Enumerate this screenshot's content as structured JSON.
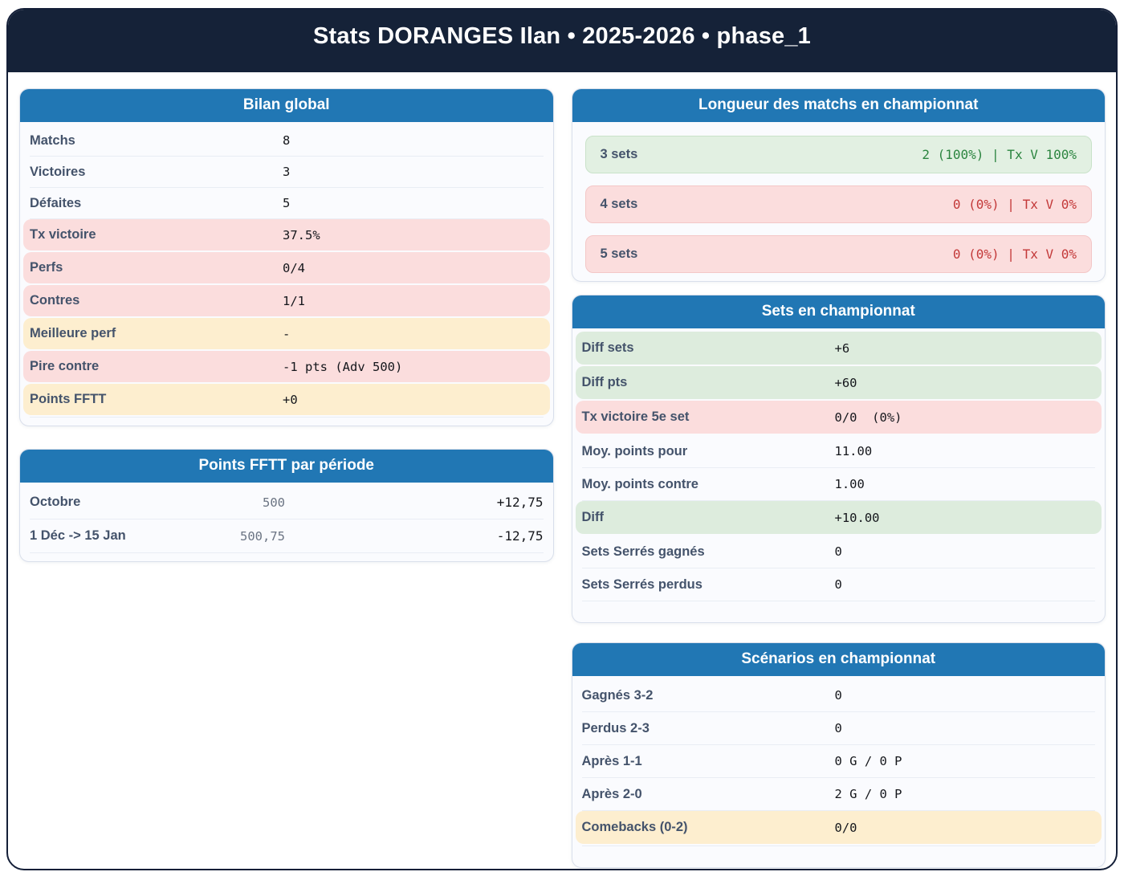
{
  "page_title": "Stats DORANGES Ilan • 2025-2026 • phase_1",
  "colors": {
    "navy_header": "#152238",
    "card_header_blue": "#2177b4",
    "label_text": "#44536b",
    "value_text": "#15171c",
    "highlight_pink": "#fbdddd",
    "highlight_yellow": "#fdeecf",
    "highlight_green": "#ddecdd",
    "positive_text_green": "#2c8540",
    "negative_text_red": "#c33939"
  },
  "cards": {
    "bilan": {
      "title": "Bilan global",
      "rows": [
        {
          "label": "Matchs",
          "value": "8",
          "tone": "plain"
        },
        {
          "label": "Victoires",
          "value": "3",
          "tone": "plain"
        },
        {
          "label": "Défaites",
          "value": "5",
          "tone": "plain"
        },
        {
          "label": "Tx victoire",
          "value": "37.5%",
          "tone": "pink"
        },
        {
          "label": "Perfs",
          "value": "0/4",
          "tone": "pink"
        },
        {
          "label": "Contres",
          "value": "1/1",
          "tone": "pink"
        },
        {
          "label": "Meilleure perf",
          "value": "-",
          "tone": "yellow"
        },
        {
          "label": "Pire contre",
          "value": "-1 pts (Adv 500)",
          "tone": "pink"
        },
        {
          "label": "Points FFTT",
          "value": "+0",
          "tone": "yellow"
        }
      ]
    },
    "points_periode": {
      "title": "Points FFTT par période",
      "rows": [
        {
          "label": "Octobre",
          "base": "500",
          "delta": "+12,75"
        },
        {
          "label": "1 Déc -> 15 Jan",
          "base": "500,75",
          "delta": "-12,75"
        }
      ]
    },
    "longueur": {
      "title": "Longueur des matchs en championnat",
      "rows": [
        {
          "label": "3 sets",
          "value": "2 (100%) | Tx V 100%",
          "tone": "green"
        },
        {
          "label": "4 sets",
          "value": "0 (0%) | Tx V 0%",
          "tone": "pink"
        },
        {
          "label": "5 sets",
          "value": "0 (0%) | Tx V 0%",
          "tone": "pink"
        }
      ]
    },
    "sets": {
      "title": "Sets en championnat",
      "rows": [
        {
          "label": "Diff sets",
          "value": "+6",
          "tone": "green"
        },
        {
          "label": "Diff pts",
          "value": "+60",
          "tone": "green"
        },
        {
          "label": "Tx victoire 5e set",
          "value": "0/0  (0%)",
          "tone": "pink"
        },
        {
          "label": "Moy. points pour",
          "value": "11.00",
          "tone": "plain"
        },
        {
          "label": "Moy. points contre",
          "value": "1.00",
          "tone": "plain"
        },
        {
          "label": "Diff",
          "value": "+10.00",
          "tone": "green"
        },
        {
          "label": "Sets Serrés gagnés",
          "value": "0",
          "tone": "plain"
        },
        {
          "label": "Sets Serrés perdus",
          "value": "0",
          "tone": "plain"
        }
      ]
    },
    "scenarios": {
      "title": "Scénarios en championnat",
      "rows": [
        {
          "label": "Gagnés 3-2",
          "value": "0",
          "tone": "plain"
        },
        {
          "label": "Perdus 2-3",
          "value": "0",
          "tone": "plain"
        },
        {
          "label": "Après 1-1",
          "value": "0 G / 0 P",
          "tone": "plain"
        },
        {
          "label": "Après 2-0",
          "value": "2 G / 0 P",
          "tone": "plain"
        },
        {
          "label": "Comebacks (0-2)",
          "value": "0/0",
          "tone": "yellow"
        }
      ]
    }
  }
}
